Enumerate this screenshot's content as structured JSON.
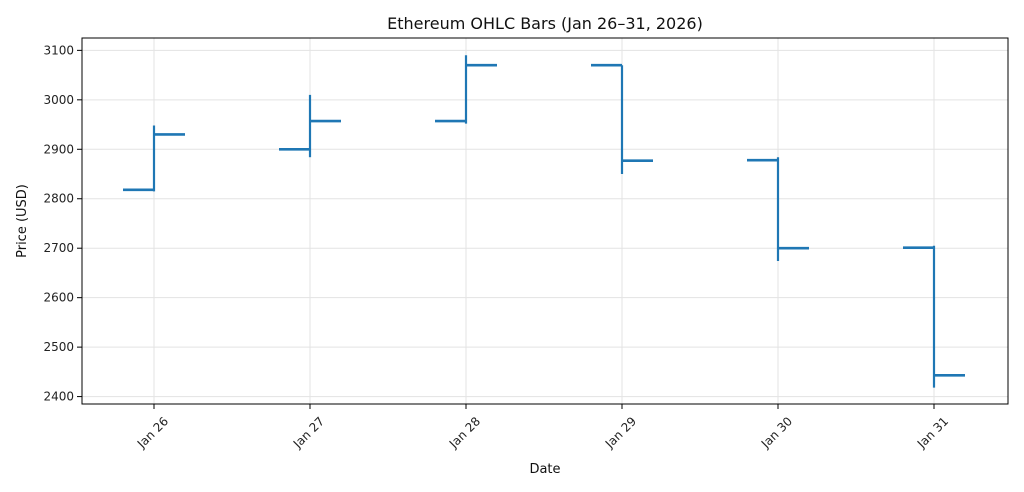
{
  "chart_data": {
    "type": "ohlc",
    "title": "Ethereum OHLC Bars (Jan 26–31, 2026)",
    "xlabel": "Date",
    "ylabel": "Price (USD)",
    "ylim": [
      2385,
      3125
    ],
    "yticks": [
      2400,
      2500,
      2600,
      2700,
      2800,
      2900,
      3000,
      3100
    ],
    "grid": true,
    "color": "#1f77b4",
    "categories": [
      "Jan 26",
      "Jan 27",
      "Jan 28",
      "Jan 29",
      "Jan 30",
      "Jan 31"
    ],
    "series": [
      {
        "open": [
          2818,
          2900,
          2957,
          3070,
          2878,
          2701
        ],
        "high": [
          2948,
          3010,
          3090,
          3070,
          2884,
          2705
        ],
        "low": [
          2815,
          2884,
          2952,
          2850,
          2674,
          2418
        ],
        "close": [
          2930,
          2957,
          3070,
          2877,
          2700,
          2443
        ]
      }
    ]
  }
}
